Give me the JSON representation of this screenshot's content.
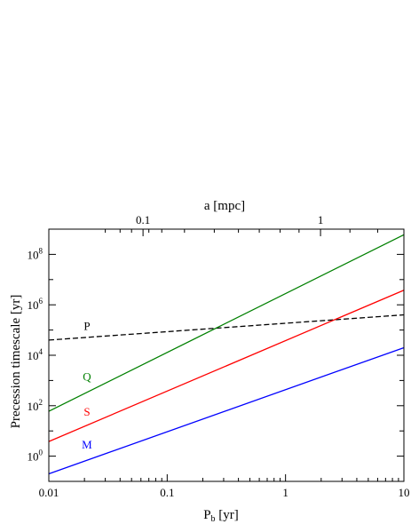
{
  "chart_data": {
    "type": "line",
    "xlabel_base": "P",
    "xlabel_sub": "b",
    "xlabel_unit": " [yr]",
    "ylabel": "Precession timescale [yr]",
    "top_axis_label": "a [mpc]",
    "x_scale": "log",
    "y_scale": "log",
    "xlim": [
      0.01,
      10
    ],
    "ylim_log10": [
      -1,
      9
    ],
    "x_ticks": [
      {
        "value": 0.01,
        "label": "0.01"
      },
      {
        "value": 0.1,
        "label": "0.1"
      },
      {
        "value": 1,
        "label": "1"
      },
      {
        "value": 10,
        "label": "10"
      }
    ],
    "y_ticks": [
      {
        "exp": 0,
        "base": "10",
        "sup": "0"
      },
      {
        "exp": 2,
        "base": "10",
        "sup": "2"
      },
      {
        "exp": 4,
        "base": "10",
        "sup": "4"
      },
      {
        "exp": 6,
        "base": "10",
        "sup": "6"
      },
      {
        "exp": 8,
        "base": "10",
        "sup": "8"
      }
    ],
    "top_ticks": [
      {
        "label": "0.1",
        "x_equiv": 0.0625
      },
      {
        "label": "1",
        "x_equiv": 1.975
      }
    ],
    "series": [
      {
        "name": "P",
        "color": "#000000",
        "dash": true,
        "x": [
          0.01,
          10
        ],
        "y": [
          40000,
          400000
        ],
        "label_x": 0.021,
        "label_y": 150000
      },
      {
        "name": "Q",
        "color": "#008000",
        "dash": false,
        "x": [
          0.01,
          10
        ],
        "y": [
          60,
          600000000
        ],
        "label_x": 0.021,
        "label_y": 1500
      },
      {
        "name": "S",
        "color": "#ff0000",
        "dash": false,
        "x": [
          0.01,
          10
        ],
        "y": [
          3.8,
          3800000
        ],
        "label_x": 0.021,
        "label_y": 60
      },
      {
        "name": "M",
        "color": "#0000ff",
        "dash": false,
        "x": [
          0.01,
          10
        ],
        "y": [
          0.2,
          20000
        ],
        "label_x": 0.021,
        "label_y": 3
      }
    ]
  }
}
